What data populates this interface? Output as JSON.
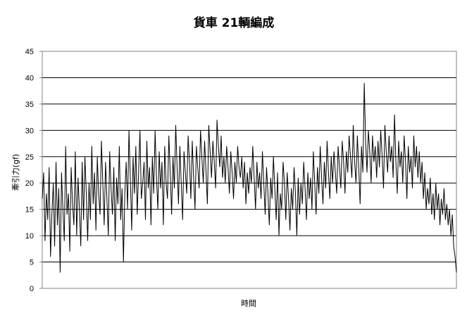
{
  "chart_data": {
    "type": "line",
    "title": "貨車 21輌編成",
    "xlabel": "時間",
    "ylabel": "牽引力(gf)",
    "ylim": [
      0,
      45
    ],
    "yticks": [
      0,
      5,
      10,
      15,
      20,
      25,
      30,
      35,
      40,
      45
    ],
    "grid": true,
    "legend": "none",
    "series": [
      {
        "color": "#000000",
        "values": [
          17,
          22,
          9,
          18,
          13,
          23,
          6,
          14,
          20,
          8,
          24,
          12,
          19,
          3,
          22,
          15,
          9,
          27,
          14,
          18,
          7,
          23,
          16,
          12,
          26,
          10,
          21,
          15,
          8,
          24,
          13,
          25,
          18,
          9,
          20,
          13,
          27,
          16,
          22,
          11,
          25,
          18,
          14,
          28,
          20,
          12,
          24,
          17,
          10,
          26,
          19,
          14,
          23,
          9,
          21,
          16,
          27,
          13,
          19,
          5,
          18,
          24,
          15,
          30,
          21,
          11,
          25,
          18,
          27,
          14,
          22,
          30,
          17,
          20,
          24,
          13,
          28,
          19,
          23,
          12,
          25,
          18,
          30,
          21,
          15,
          26,
          19,
          24,
          12,
          27,
          20,
          17,
          29,
          22,
          14,
          25,
          19,
          31,
          23,
          16,
          27,
          20,
          13,
          26,
          22,
          18,
          29,
          24,
          17,
          28,
          21,
          15,
          27,
          23,
          19,
          30,
          25,
          20,
          28,
          22,
          16,
          31,
          26,
          21,
          28,
          24,
          19,
          32,
          27,
          23,
          29,
          21,
          25,
          20,
          27,
          23,
          18,
          26,
          22,
          17,
          24,
          20,
          27,
          23,
          21,
          25,
          19,
          24,
          16,
          22,
          18,
          23,
          20,
          27,
          21,
          15,
          24,
          19,
          22,
          17,
          26,
          20,
          14,
          23,
          18,
          12,
          21,
          17,
          25,
          19,
          13,
          22,
          10,
          18,
          15,
          24,
          20,
          13,
          22,
          17,
          11,
          19,
          15,
          23,
          18,
          10,
          21,
          14,
          20,
          16,
          24,
          19,
          13,
          22,
          17,
          21,
          15,
          26,
          20,
          14,
          23,
          18,
          27,
          21,
          16,
          24,
          19,
          28,
          22,
          17,
          25,
          20,
          26,
          22,
          18,
          27,
          23,
          19,
          28,
          24,
          18,
          26,
          22,
          29,
          25,
          21,
          31,
          24,
          20,
          29,
          23,
          16,
          27,
          22,
          39,
          28,
          22,
          30,
          26,
          20,
          29,
          24,
          27,
          21,
          28,
          23,
          30,
          25,
          19,
          31,
          26,
          22,
          29,
          24,
          27,
          21,
          33,
          24,
          18,
          28,
          23,
          26,
          20,
          29,
          24,
          17,
          27,
          22,
          25,
          19,
          29,
          23,
          27,
          21,
          26,
          20,
          24,
          17,
          22,
          15,
          19,
          16,
          21,
          14,
          18,
          13,
          20,
          15,
          18,
          12,
          17,
          14,
          19,
          13,
          16,
          12,
          15,
          10,
          14,
          8,
          6,
          3
        ]
      }
    ]
  }
}
